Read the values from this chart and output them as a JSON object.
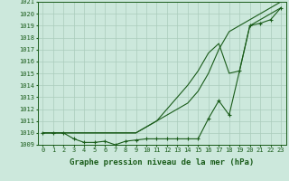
{
  "x": [
    0,
    1,
    2,
    3,
    4,
    5,
    6,
    7,
    8,
    9,
    10,
    11,
    12,
    13,
    14,
    15,
    16,
    17,
    18,
    19,
    20,
    21,
    22,
    23
  ],
  "line_straight": [
    1010,
    1010,
    1010,
    1010,
    1010,
    1010,
    1010,
    1010,
    1010,
    1010,
    1010.5,
    1011,
    1011.5,
    1012,
    1012.5,
    1013.5,
    1015,
    1017,
    1018.5,
    1019,
    1019.5,
    1020,
    1020.5,
    1021
  ],
  "line_mid": [
    1010,
    1010,
    1010,
    1010,
    1010,
    1010,
    1010,
    1010,
    1010,
    1010,
    1010.5,
    1011,
    1012,
    1013,
    1014,
    1015.2,
    1016.7,
    1017.5,
    1015,
    1015.2,
    1019,
    1019.5,
    1020,
    1020.5
  ],
  "line_dotted": [
    1010,
    1010,
    1010,
    1009.5,
    1009.2,
    1009.2,
    1009.3,
    1009.0,
    1009.3,
    1009.4,
    1009.5,
    1009.5,
    1009.5,
    1009.5,
    1009.5,
    1009.5,
    1011.2,
    1012.7,
    1011.5,
    1015.2,
    1019,
    1019.2,
    1019.5,
    1020.5
  ],
  "ylim_min": 1009,
  "ylim_max": 1021,
  "xlabel": "Graphe pression niveau de la mer (hPa)",
  "line_color": "#1a5c1a",
  "bg_color": "#cce8dc",
  "grid_color": "#aaccbc",
  "tick_color": "#1a5c1a",
  "tick_fontsize": 5.0,
  "label_fontsize": 6.5
}
